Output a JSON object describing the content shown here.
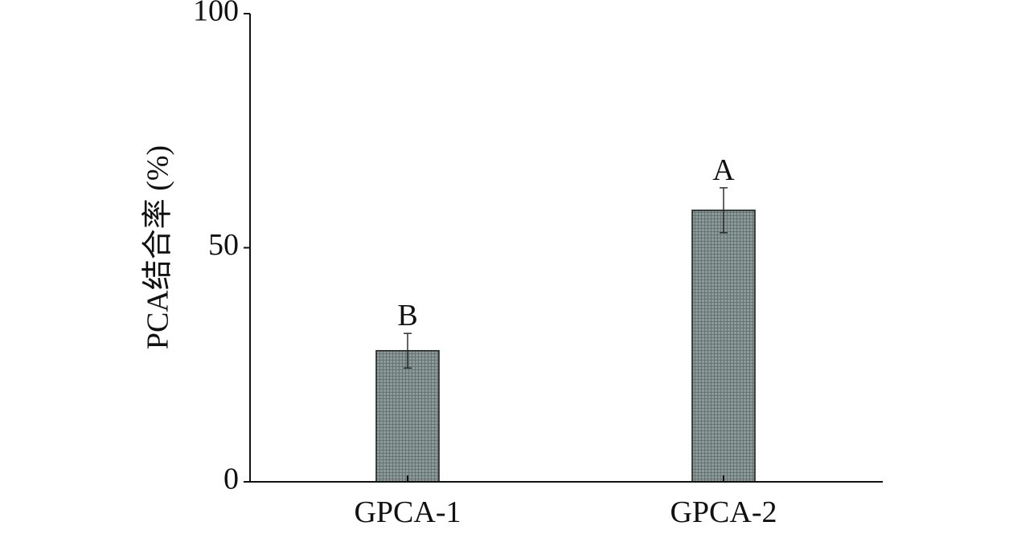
{
  "chart_data": {
    "type": "bar",
    "title": "",
    "xlabel": "",
    "ylabel": "PCA结合率 (%)",
    "categories": [
      "GPCA-1",
      "GPCA-2"
    ],
    "values": [
      28,
      58
    ],
    "errors": [
      3.7,
      4.8
    ],
    "significance_labels": [
      "B",
      "A"
    ],
    "ylim": [
      0,
      100
    ],
    "yticks": [
      0,
      50,
      100
    ],
    "grid": false,
    "bar_fill": "#7a8a8a"
  }
}
